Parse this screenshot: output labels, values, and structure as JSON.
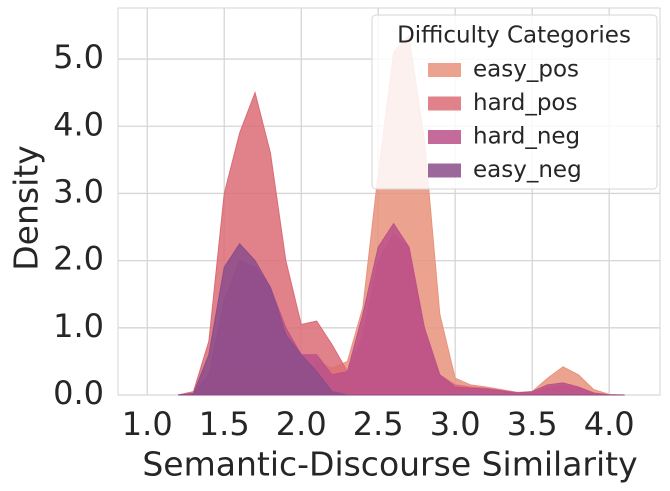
{
  "chart_data": {
    "type": "area",
    "xlabel": "Semantic-Discourse Similarity",
    "ylabel": "Density",
    "legend_title": "Difficulty Categories",
    "legend_position": "upper right",
    "grid": true,
    "xlim": [
      0.81,
      4.33
    ],
    "ylim": [
      0,
      5.76
    ],
    "xticks": [
      {
        "value": 1,
        "label": "1.0"
      },
      1.5,
      {
        "value": 2,
        "label": "2.0"
      },
      2.5,
      {
        "value": 3,
        "label": "3.0"
      },
      3.5,
      {
        "value": 4,
        "label": "4.0"
      }
    ],
    "yticks": [
      {
        "value": 0,
        "label": "0.0"
      },
      {
        "value": 1,
        "label": "1.0"
      },
      {
        "value": 2,
        "label": "2.0"
      },
      {
        "value": 3,
        "label": "3.0"
      },
      {
        "value": 4,
        "label": "4.0"
      },
      {
        "value": 5,
        "label": "5.0"
      }
    ],
    "x": [
      1.2,
      1.3,
      1.4,
      1.5,
      1.6,
      1.7,
      1.8,
      1.9,
      2.0,
      2.1,
      2.2,
      2.3,
      2.4,
      2.5,
      2.6,
      2.7,
      2.8,
      2.9,
      3.0,
      3.1,
      3.2,
      3.3,
      3.4,
      3.5,
      3.6,
      3.7,
      3.8,
      3.9,
      4.0,
      4.1
    ],
    "series": [
      {
        "name": "easy_pos",
        "color": "#e8937c",
        "values": [
          0,
          0.02,
          0.1,
          0.3,
          0.4,
          0.4,
          0.35,
          0.3,
          0.35,
          0.5,
          0.4,
          0.5,
          1.3,
          3.3,
          5.1,
          5.35,
          3.8,
          1.2,
          0.25,
          0.15,
          0.12,
          0.08,
          0.04,
          0.05,
          0.25,
          0.42,
          0.3,
          0.08,
          0.01,
          0
        ]
      },
      {
        "name": "hard_pos",
        "color": "#dc6b76",
        "values": [
          0,
          0.05,
          0.8,
          3.0,
          3.9,
          4.5,
          3.6,
          2.0,
          1.05,
          1.1,
          0.75,
          0.35,
          0.9,
          2.0,
          2.4,
          2.2,
          1.0,
          0.3,
          0.15,
          0.12,
          0.1,
          0.07,
          0.04,
          0.03,
          0.1,
          0.15,
          0.1,
          0.03,
          0,
          0
        ]
      },
      {
        "name": "hard_neg",
        "color": "#bb5189",
        "values": [
          0,
          0.02,
          0.3,
          1.4,
          2.0,
          1.9,
          1.6,
          1.0,
          0.6,
          0.6,
          0.3,
          0.35,
          1.2,
          2.2,
          2.55,
          2.2,
          1.0,
          0.3,
          0.12,
          0.1,
          0.09,
          0.06,
          0.03,
          0.05,
          0.15,
          0.18,
          0.12,
          0.03,
          0,
          0
        ]
      },
      {
        "name": "easy_neg",
        "color": "#8b4d8b",
        "values": [
          0,
          0.02,
          0.6,
          1.9,
          2.25,
          2.0,
          1.6,
          0.9,
          0.6,
          0.35,
          0.05,
          0,
          0,
          0,
          0,
          0,
          0,
          0,
          0,
          0,
          0,
          0,
          0,
          0,
          0,
          0,
          0,
          0,
          0,
          0
        ]
      }
    ]
  }
}
